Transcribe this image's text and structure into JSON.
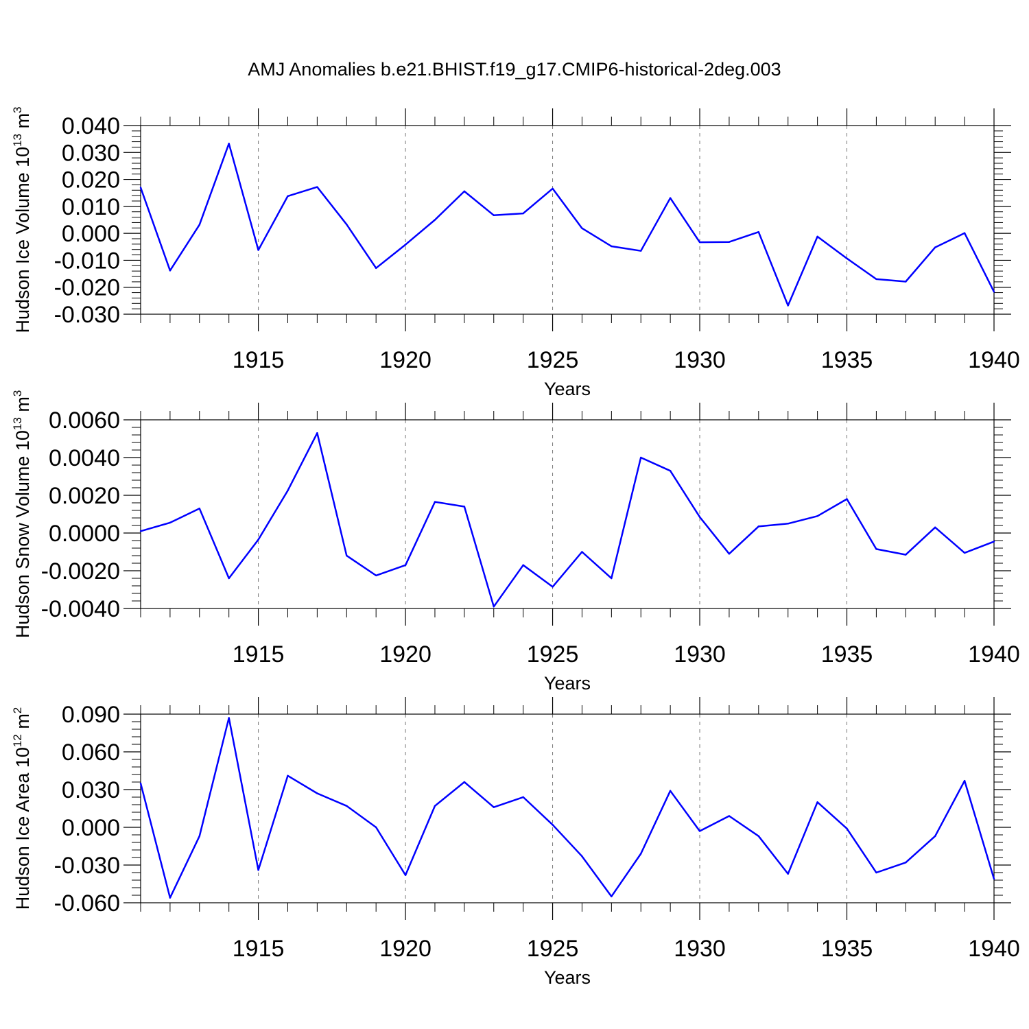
{
  "figure": {
    "title": "AMJ Anomalies b.e21.BHIST.f19_g17.CMIP6-historical-2deg.003"
  },
  "chart_data": [
    {
      "type": "line",
      "xlabel": "Years",
      "ylabel": "Hudson Ice Volume 10",
      "ylabel_exp": "13",
      "ylabel_unit": " m",
      "ylabel_unit_exp": "3",
      "xlim": [
        1911,
        1940
      ],
      "ylim": [
        -0.03,
        0.04
      ],
      "xticks": [
        1915,
        1920,
        1925,
        1930,
        1935,
        1940
      ],
      "xtick_labels": [
        "1915",
        "1920",
        "1925",
        "1930",
        "1935",
        "1940"
      ],
      "yticks": [
        -0.03,
        -0.02,
        -0.01,
        0.0,
        0.01,
        0.02,
        0.03,
        0.04
      ],
      "ytick_labels": [
        "-0.030",
        "-0.020",
        "-0.010",
        "0.000",
        "0.010",
        "0.020",
        "0.030",
        "0.040"
      ],
      "grid": "x-dashed",
      "line_color": "#0000ff",
      "x": [
        1911,
        1912,
        1913,
        1914,
        1915,
        1916,
        1917,
        1918,
        1919,
        1920,
        1921,
        1922,
        1923,
        1924,
        1925,
        1926,
        1927,
        1928,
        1929,
        1930,
        1931,
        1932,
        1933,
        1934,
        1935,
        1936,
        1937,
        1938,
        1939,
        1940
      ],
      "y": [
        0.017,
        -0.0138,
        0.0032,
        0.0333,
        -0.0062,
        0.0138,
        0.0172,
        0.0033,
        -0.0129,
        -0.0042,
        0.005,
        0.0156,
        0.0067,
        0.0074,
        0.0166,
        0.0019,
        -0.0048,
        -0.0065,
        0.0131,
        -0.0033,
        -0.0032,
        0.0005,
        -0.0268,
        -0.0012,
        -0.0093,
        -0.017,
        -0.0179,
        -0.0052,
        0.0001,
        -0.0217
      ]
    },
    {
      "type": "line",
      "xlabel": "Years",
      "ylabel": "Hudson Snow Volume 10",
      "ylabel_exp": "13",
      "ylabel_unit": " m",
      "ylabel_unit_exp": "3",
      "xlim": [
        1911,
        1940
      ],
      "ylim": [
        -0.004,
        0.006
      ],
      "xticks": [
        1915,
        1920,
        1925,
        1930,
        1935,
        1940
      ],
      "xtick_labels": [
        "1915",
        "1920",
        "1925",
        "1930",
        "1935",
        "1940"
      ],
      "yticks": [
        -0.004,
        -0.002,
        0.0,
        0.002,
        0.004,
        0.006
      ],
      "ytick_labels": [
        "-0.0040",
        "-0.0020",
        "0.0000",
        "0.0020",
        "0.0040",
        "0.0060"
      ],
      "grid": "x-dashed",
      "line_color": "#0000ff",
      "x": [
        1911,
        1912,
        1913,
        1914,
        1915,
        1916,
        1917,
        1918,
        1919,
        1920,
        1921,
        1922,
        1923,
        1924,
        1925,
        1926,
        1927,
        1928,
        1929,
        1930,
        1931,
        1932,
        1933,
        1934,
        1935,
        1936,
        1937,
        1938,
        1939,
        1940
      ],
      "y": [
        0.0001,
        0.00055,
        0.0013,
        -0.0024,
        -0.00035,
        0.00225,
        0.0053,
        -0.0012,
        -0.00225,
        -0.0017,
        0.00165,
        0.0014,
        -0.0039,
        -0.0017,
        -0.00285,
        -0.001,
        -0.0024,
        0.004,
        0.0033,
        0.00085,
        -0.0011,
        0.00035,
        0.0005,
        0.0009,
        0.0018,
        -0.00085,
        -0.00115,
        0.0003,
        -0.00105,
        -0.00045
      ]
    },
    {
      "type": "line",
      "xlabel": "Years",
      "ylabel": "Hudson Ice Area 10",
      "ylabel_exp": "12",
      "ylabel_unit": " m",
      "ylabel_unit_exp": "2",
      "xlim": [
        1911,
        1940
      ],
      "ylim": [
        -0.06,
        0.09
      ],
      "xticks": [
        1915,
        1920,
        1925,
        1930,
        1935,
        1940
      ],
      "xtick_labels": [
        "1915",
        "1920",
        "1925",
        "1930",
        "1935",
        "1940"
      ],
      "yticks": [
        -0.06,
        -0.03,
        0.0,
        0.03,
        0.06,
        0.09
      ],
      "ytick_labels": [
        "-0.060",
        "-0.030",
        "0.000",
        "0.030",
        "0.060",
        "0.090"
      ],
      "grid": "x-dashed",
      "line_color": "#0000ff",
      "x": [
        1911,
        1912,
        1913,
        1914,
        1915,
        1916,
        1917,
        1918,
        1919,
        1920,
        1921,
        1922,
        1923,
        1924,
        1925,
        1926,
        1927,
        1928,
        1929,
        1930,
        1931,
        1932,
        1933,
        1934,
        1935,
        1936,
        1937,
        1938,
        1939,
        1940
      ],
      "y": [
        0.035,
        -0.056,
        -0.007,
        0.087,
        -0.034,
        0.041,
        0.027,
        0.017,
        0.0,
        -0.038,
        0.017,
        0.036,
        0.016,
        0.024,
        0.002,
        -0.023,
        -0.055,
        -0.021,
        0.029,
        -0.003,
        0.009,
        -0.007,
        -0.037,
        0.02,
        -0.001,
        -0.036,
        -0.028,
        -0.007,
        0.037,
        -0.041
      ]
    }
  ]
}
